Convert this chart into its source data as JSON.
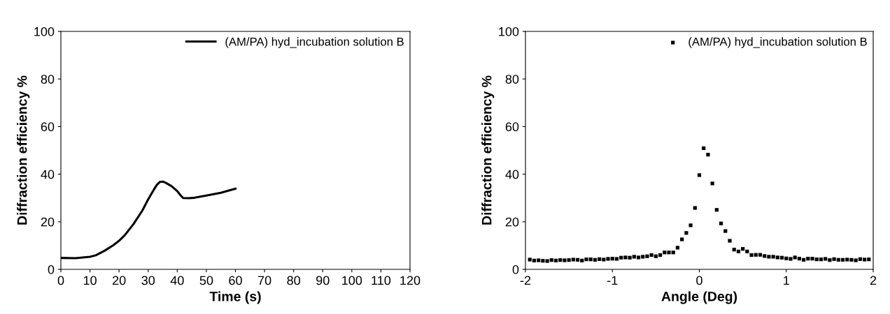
{
  "chart_data": [
    {
      "type": "line",
      "xlabel": "Time (s)",
      "ylabel": "Diffraction efficiency %",
      "xlim": [
        0,
        120
      ],
      "ylim": [
        0,
        100
      ],
      "xticks": [
        0,
        10,
        20,
        30,
        40,
        50,
        60,
        70,
        80,
        90,
        100,
        110,
        120
      ],
      "yticks": [
        0,
        20,
        40,
        60,
        80,
        100
      ],
      "legend": "top right",
      "grid": false,
      "marker": "none",
      "line_style": "solid",
      "series": [
        {
          "name": "(AM/PA) hyd_incubation solution B",
          "color": "#000000",
          "x": [
            0,
            5,
            10,
            12,
            15,
            18,
            20,
            22,
            25,
            28,
            30,
            32,
            33,
            34,
            35,
            36,
            38,
            40,
            41,
            42,
            44,
            46,
            50,
            55,
            60
          ],
          "values": [
            4.8,
            4.7,
            5.3,
            5.9,
            7.8,
            10.1,
            12.0,
            14.4,
            19.1,
            24.7,
            29.4,
            33.6,
            35.5,
            36.7,
            36.9,
            36.4,
            35.0,
            32.9,
            31.3,
            30.0,
            29.9,
            30.1,
            31.0,
            32.2,
            33.9
          ]
        }
      ]
    },
    {
      "type": "scatter",
      "xlabel": "Angle (Deg)",
      "ylabel": "Diffraction efficiency %",
      "xlim": [
        -2,
        2
      ],
      "ylim": [
        0,
        100
      ],
      "xticks": [
        -2,
        -1,
        0,
        1,
        2
      ],
      "yticks": [
        0,
        20,
        40,
        60,
        80,
        100
      ],
      "legend": "top right",
      "grid": false,
      "marker": "square",
      "series": [
        {
          "name": "(AM/PA) hyd_incubation solution B",
          "color": "#000000",
          "x": [
            -1.95,
            -1.9,
            -1.85,
            -1.8,
            -1.75,
            -1.7,
            -1.65,
            -1.6,
            -1.55,
            -1.5,
            -1.45,
            -1.4,
            -1.35,
            -1.3,
            -1.25,
            -1.2,
            -1.15,
            -1.1,
            -1.05,
            -1.0,
            -0.95,
            -0.9,
            -0.85,
            -0.8,
            -0.75,
            -0.7,
            -0.65,
            -0.6,
            -0.55,
            -0.5,
            -0.45,
            -0.4,
            -0.35,
            -0.3,
            -0.25,
            -0.2,
            -0.15,
            -0.1,
            -0.05,
            0,
            0.05,
            0.1,
            0.15,
            0.2,
            0.25,
            0.3,
            0.35,
            0.4,
            0.45,
            0.5,
            0.55,
            0.6,
            0.65,
            0.7,
            0.75,
            0.8,
            0.85,
            0.9,
            0.95,
            1.0,
            1.05,
            1.1,
            1.15,
            1.2,
            1.25,
            1.3,
            1.35,
            1.4,
            1.45,
            1.5,
            1.55,
            1.6,
            1.65,
            1.7,
            1.75,
            1.8,
            1.85,
            1.9,
            1.95
          ],
          "values": [
            4.1,
            3.7,
            3.8,
            3.6,
            3.5,
            3.9,
            3.7,
            3.9,
            3.8,
            3.9,
            4.1,
            4.0,
            3.7,
            4.2,
            4.2,
            4.0,
            4.3,
            4.1,
            4.4,
            4.5,
            4.4,
            4.9,
            5.0,
            4.9,
            5.3,
            5.0,
            5.3,
            5.5,
            6.0,
            5.5,
            6.0,
            7.1,
            7.1,
            7.1,
            9.1,
            12.6,
            15.3,
            18.5,
            25.8,
            39.6,
            50.9,
            48.2,
            36.1,
            25.0,
            19.3,
            16.1,
            12.0,
            8.3,
            7.5,
            8.6,
            7.5,
            6.0,
            6.1,
            6.1,
            5.6,
            5.3,
            5.3,
            5.0,
            4.9,
            4.6,
            4.4,
            5.0,
            4.5,
            4.0,
            4.5,
            4.5,
            4.2,
            4.2,
            4.4,
            3.9,
            4.3,
            4.0,
            4.0,
            4.1,
            4.0,
            3.8,
            4.3,
            4.1,
            4.2
          ]
        }
      ]
    }
  ]
}
